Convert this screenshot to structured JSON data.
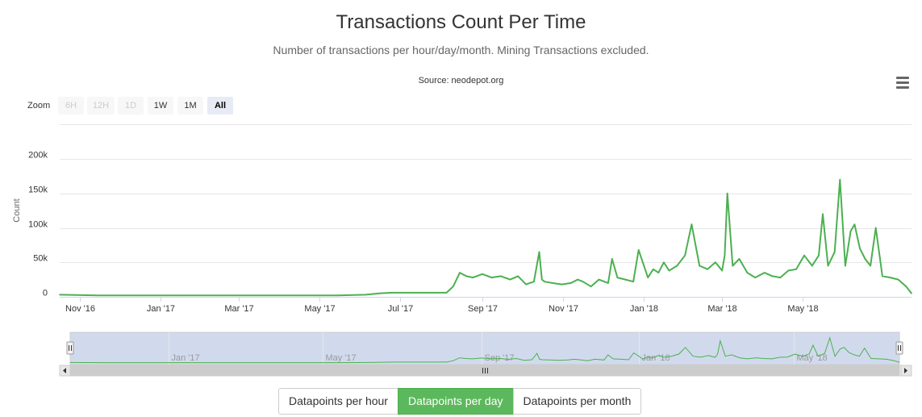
{
  "header": {
    "title": "Transactions Count Per Time",
    "subtitle": "Number of transactions per hour/day/month. Mining Transactions excluded.",
    "credits": "Source: neodepot.org"
  },
  "menu": {
    "icon": "hamburger-menu-icon"
  },
  "zoom": {
    "label": "Zoom",
    "buttons": [
      {
        "label": "6H",
        "state": "disabled"
      },
      {
        "label": "12H",
        "state": "disabled"
      },
      {
        "label": "1D",
        "state": "disabled"
      },
      {
        "label": "1W",
        "state": "normal"
      },
      {
        "label": "1M",
        "state": "normal"
      },
      {
        "label": "All",
        "state": "active"
      }
    ]
  },
  "chart_data": {
    "type": "line",
    "title": "Transactions Count Per Time",
    "subtitle": "Number of transactions per hour/day/month. Mining Transactions excluded.",
    "ylabel": "Count",
    "ylim": [
      0,
      200000
    ],
    "yticks": [
      0,
      50000,
      100000,
      150000,
      200000
    ],
    "yticklabels": [
      "0",
      "50k",
      "100k",
      "150k",
      "200k"
    ],
    "xlim": [
      "2016-10-17",
      "2018-07-22"
    ],
    "xticks": [
      "2016-11-01",
      "2017-01-01",
      "2017-03-01",
      "2017-05-01",
      "2017-07-01",
      "2017-09-01",
      "2017-11-01",
      "2018-01-01",
      "2018-03-01",
      "2018-05-01"
    ],
    "xticklabels": [
      "Nov '16",
      "Jan '17",
      "Mar '17",
      "May '17",
      "Jul '17",
      "Sep '17",
      "Nov '17",
      "Jan '18",
      "Mar '18",
      "May '18"
    ],
    "navigator_ticks": [
      "2017-01-01",
      "2017-05-01",
      "2017-09-01",
      "2018-01-01",
      "2018-05-01"
    ],
    "navigator_ticklabels": [
      "Jan '17",
      "May '17",
      "Sep '17",
      "Jan '18",
      "May '18"
    ],
    "color": "#4cb050",
    "grid": true,
    "legend": "none",
    "series": [
      {
        "x": [
          "2016-10-17",
          "2016-11-15",
          "2016-12-15",
          "2017-01-15",
          "2017-02-15",
          "2017-03-15",
          "2017-04-15",
          "2017-05-15",
          "2017-06-05",
          "2017-06-15",
          "2017-06-25",
          "2017-07-15",
          "2017-08-05",
          "2017-08-10",
          "2017-08-15",
          "2017-08-20",
          "2017-08-25",
          "2017-09-01",
          "2017-09-08",
          "2017-09-15",
          "2017-09-22",
          "2017-09-28",
          "2017-10-04",
          "2017-10-10",
          "2017-10-14",
          "2017-10-16",
          "2017-10-18",
          "2017-10-24",
          "2017-10-31",
          "2017-11-07",
          "2017-11-12",
          "2017-11-16",
          "2017-11-22",
          "2017-11-28",
          "2017-12-05",
          "2017-12-08",
          "2017-12-12",
          "2017-12-18",
          "2017-12-24",
          "2017-12-28",
          "2018-01-04",
          "2018-01-08",
          "2018-01-12",
          "2018-01-16",
          "2018-01-20",
          "2018-01-26",
          "2018-02-01",
          "2018-02-06",
          "2018-02-12",
          "2018-02-18",
          "2018-02-24",
          "2018-03-01",
          "2018-03-03",
          "2018-03-05",
          "2018-03-09",
          "2018-03-14",
          "2018-03-20",
          "2018-03-26",
          "2018-04-02",
          "2018-04-08",
          "2018-04-14",
          "2018-04-20",
          "2018-04-26",
          "2018-05-02",
          "2018-05-08",
          "2018-05-13",
          "2018-05-16",
          "2018-05-20",
          "2018-05-25",
          "2018-05-29",
          "2018-06-02",
          "2018-06-06",
          "2018-06-09",
          "2018-06-13",
          "2018-06-17",
          "2018-06-21",
          "2018-06-25",
          "2018-06-30",
          "2018-07-06",
          "2018-07-12",
          "2018-07-18",
          "2018-07-22"
        ],
        "y": [
          3000,
          2000,
          2000,
          2000,
          2000,
          2000,
          2000,
          2000,
          3000,
          5000,
          6000,
          6000,
          6000,
          15000,
          35000,
          30000,
          28000,
          33000,
          28000,
          30000,
          25000,
          30000,
          18000,
          22000,
          65000,
          25000,
          22000,
          20000,
          18000,
          20000,
          25000,
          22000,
          15000,
          25000,
          20000,
          55000,
          28000,
          25000,
          22000,
          68000,
          28000,
          40000,
          35000,
          50000,
          38000,
          45000,
          60000,
          105000,
          45000,
          40000,
          50000,
          38000,
          60000,
          150000,
          45000,
          55000,
          35000,
          28000,
          35000,
          30000,
          28000,
          38000,
          40000,
          60000,
          45000,
          60000,
          120000,
          45000,
          65000,
          170000,
          45000,
          95000,
          105000,
          70000,
          55000,
          45000,
          100000,
          30000,
          28000,
          25000,
          15000,
          5000
        ]
      }
    ]
  },
  "navigator": {
    "left_handle": "navigator-left-handle",
    "right_handle": "navigator-right-handle"
  },
  "scrollbar": {
    "left_arrow": "scroll-left-arrow-icon",
    "right_arrow": "scroll-right-arrow-icon",
    "grip": "scrollbar-grip-icon"
  },
  "datapoint_buttons": [
    {
      "label": "Datapoints per hour",
      "active": false
    },
    {
      "label": "Datapoints per day",
      "active": true
    },
    {
      "label": "Datapoints per month",
      "active": false
    }
  ]
}
